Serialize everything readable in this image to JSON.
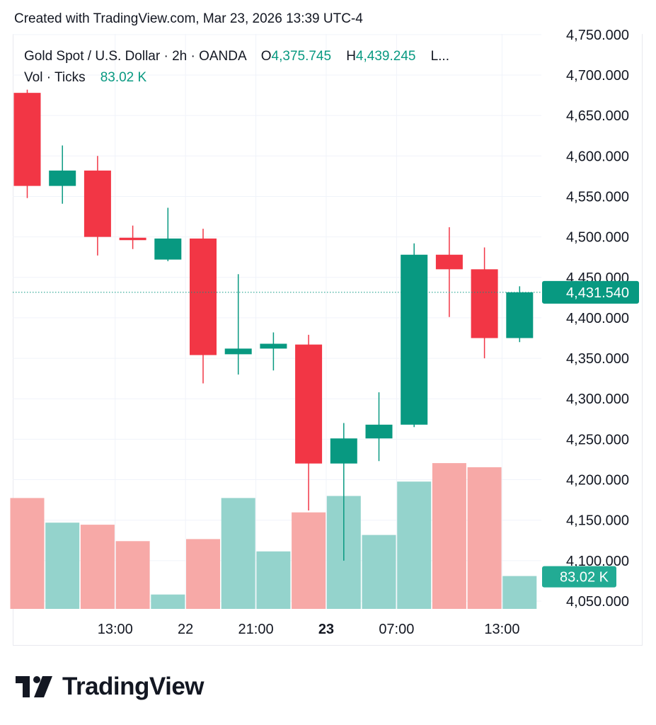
{
  "header": {
    "created_text": "Created with TradingView.com, Mar 23, 2026 13:39 UTC-4"
  },
  "legend": {
    "symbol": "Gold Spot / U.S. Dollar · 2h · OANDA",
    "o_label": "O",
    "o_value": "4,375.745",
    "h_label": "H",
    "h_value": "4,439.245",
    "more": "L...",
    "vol_label": "Vol · Ticks",
    "vol_value": "83.02 K"
  },
  "footer": {
    "brand": "TradingView"
  },
  "colors": {
    "up": "#089981",
    "down": "#f23645",
    "vol_up": "#94d3cc",
    "vol_down": "#f7a9a7",
    "grid": "#f0f3fa",
    "text": "#131722"
  },
  "chart_data": {
    "type": "candlestick",
    "symbol": "Gold Spot / U.S. Dollar",
    "interval": "2h",
    "exchange": "OANDA",
    "y_ticks": [
      "4,750.000",
      "4,700.000",
      "4,650.000",
      "4,600.000",
      "4,550.000",
      "4,500.000",
      "4,450.000",
      "4,400.000",
      "4,350.000",
      "4,300.000",
      "4,250.000",
      "4,200.000",
      "4,150.000",
      "4,100.000",
      "4,050.000"
    ],
    "y_tick_values": [
      4750,
      4700,
      4650,
      4600,
      4550,
      4500,
      4450,
      4400,
      4350,
      4300,
      4250,
      4200,
      4150,
      4100,
      4050
    ],
    "ylim": [
      4040,
      4760
    ],
    "x_ticks": [
      {
        "label": "13:00",
        "index": 2.5,
        "bold": false
      },
      {
        "label": "22",
        "index": 4.5,
        "bold": false
      },
      {
        "label": "21:00",
        "index": 6.5,
        "bold": false
      },
      {
        "label": "23",
        "index": 8.5,
        "bold": true
      },
      {
        "label": "07:00",
        "index": 10.5,
        "bold": false
      },
      {
        "label": "13:00",
        "index": 13.5,
        "bold": false
      }
    ],
    "candles": [
      {
        "o": 4678,
        "h": 4682,
        "l": 4548,
        "c": 4563
      },
      {
        "o": 4563,
        "h": 4613,
        "l": 4541,
        "c": 4582
      },
      {
        "o": 4582,
        "h": 4600,
        "l": 4477,
        "c": 4500
      },
      {
        "o": 4499,
        "h": 4514,
        "l": 4485,
        "c": 4496
      },
      {
        "o": 4472,
        "h": 4536,
        "l": 4470,
        "c": 4498
      },
      {
        "o": 4498,
        "h": 4510,
        "l": 4319,
        "c": 4354
      },
      {
        "o": 4355,
        "h": 4454,
        "l": 4330,
        "c": 4362
      },
      {
        "o": 4362,
        "h": 4382,
        "l": 4335,
        "c": 4368
      },
      {
        "o": 4367,
        "h": 4379,
        "l": 4162,
        "c": 4220
      },
      {
        "o": 4220,
        "h": 4270,
        "l": 4100,
        "c": 4251
      },
      {
        "o": 4251,
        "h": 4308,
        "l": 4223,
        "c": 4268
      },
      {
        "o": 4268,
        "h": 4492,
        "l": 4265,
        "c": 4478
      },
      {
        "o": 4478,
        "h": 4512,
        "l": 4401,
        "c": 4460
      },
      {
        "o": 4460,
        "h": 4487,
        "l": 4350,
        "c": 4375
      },
      {
        "o": 4375,
        "h": 4439,
        "l": 4370,
        "c": 4431.54
      }
    ],
    "volume": [
      0.54,
      0.42,
      0.41,
      0.33,
      0.07,
      0.34,
      0.54,
      0.28,
      0.47,
      0.55,
      0.36,
      0.62,
      0.71,
      0.69,
      0.16
    ],
    "last_price": 4431.54,
    "last_price_label": "4,431.540",
    "last_volume_label": "83.02 K"
  }
}
